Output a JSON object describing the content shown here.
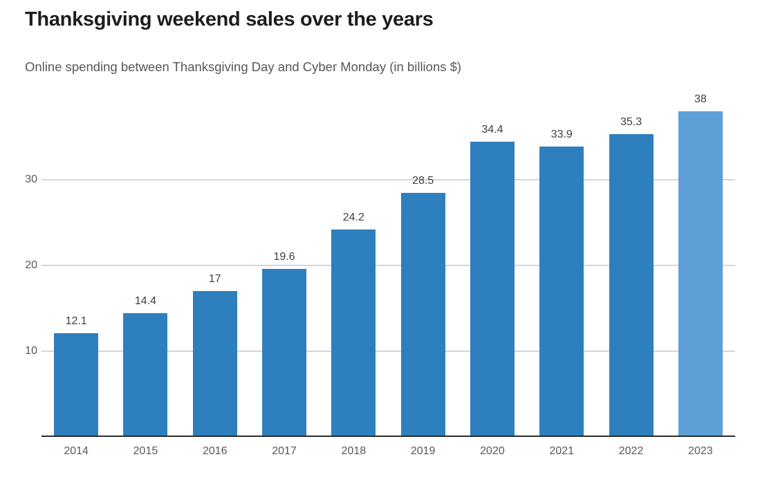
{
  "header": {
    "title": "Thanksgiving weekend sales over the years",
    "subtitle": "Online spending between Thanksgiving Day and Cyber Monday (in billions $)"
  },
  "chart_data": {
    "type": "bar",
    "title": "Thanksgiving weekend sales over the years",
    "subtitle": "Online spending between Thanksgiving Day and Cyber Monday (in billions $)",
    "categories": [
      "2014",
      "2015",
      "2016",
      "2017",
      "2018",
      "2019",
      "2020",
      "2021",
      "2022",
      "2023"
    ],
    "values": [
      12.1,
      14.4,
      17,
      19.6,
      24.2,
      28.5,
      34.4,
      33.9,
      35.3,
      38
    ],
    "xlabel": "",
    "ylabel": "",
    "ylim": [
      0,
      41
    ],
    "yticks": [
      10,
      20,
      30
    ],
    "grid": "horizontal-behind-bars",
    "legend": "none",
    "bar_color": "#2e7fbe",
    "highlight_bar_color": "#5b9fd6",
    "highlight_index": 9
  },
  "colors": {
    "background": "#ffffff",
    "title": "#1d1d1f",
    "subtitle": "#56575b",
    "axis_label": "#56575b",
    "value_label": "#3d3d3f",
    "gridline": "#d5d5d5",
    "axis_line": "#2b2b2b"
  }
}
